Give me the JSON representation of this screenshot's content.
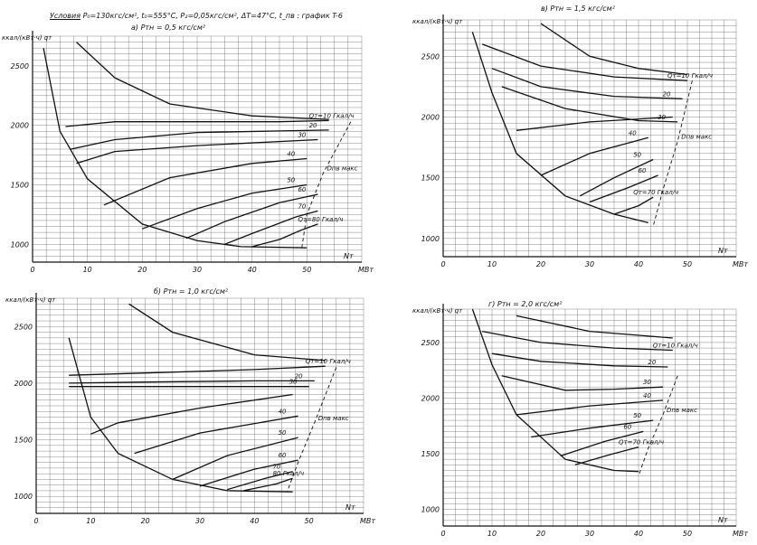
{
  "header": {
    "conditions": "Условия",
    "params": "P₀=130кгс/см², t₀=555°C, P₂=0,05кгс/см², ΔT=47°C, t_пв : график T-6"
  },
  "panels": [
    {
      "id": "a",
      "title": "а) Pтн = 0,5 кгс/см²"
    },
    {
      "id": "b",
      "title": "б) Pтн = 1,0 кгс/см²"
    },
    {
      "id": "v",
      "title": "в) Pтн = 1,5 кгс/см²"
    },
    {
      "id": "g",
      "title": "г) Pтн = 2,0 кгс/см²"
    }
  ],
  "chart_data": [
    {
      "type": "line",
      "panel": "а) Pтн = 0,5 кгс/см²",
      "ylabel": "ккал/(кВт·ч) qт",
      "xlabel": "Nт",
      "xunit": "МВт",
      "xticks": [
        0,
        10,
        20,
        30,
        40,
        50
      ],
      "yticks": [
        1000,
        1500,
        2000,
        2500
      ],
      "xlim": [
        0,
        60
      ],
      "ylim": [
        850,
        2750
      ],
      "grid": true,
      "series": [
        {
          "name": "Qт=10 Гкал/ч",
          "points": [
            [
              6,
              1990
            ],
            [
              15,
              2030
            ],
            [
              30,
              2030
            ],
            [
              45,
              2030
            ],
            [
              54,
              2040
            ]
          ]
        },
        {
          "name": "20",
          "points": [
            [
              7,
              1800
            ],
            [
              15,
              1880
            ],
            [
              30,
              1940
            ],
            [
              54,
              1960
            ]
          ]
        },
        {
          "name": "30",
          "points": [
            [
              8,
              1680
            ],
            [
              15,
              1780
            ],
            [
              30,
              1830
            ],
            [
              52,
              1880
            ]
          ]
        },
        {
          "name": "40",
          "points": [
            [
              13,
              1330
            ],
            [
              25,
              1560
            ],
            [
              40,
              1680
            ],
            [
              50,
              1720
            ]
          ]
        },
        {
          "name": "50",
          "points": [
            [
              20,
              1130
            ],
            [
              30,
              1300
            ],
            [
              40,
              1430
            ],
            [
              50,
              1500
            ]
          ]
        },
        {
          "name": "60",
          "points": [
            [
              28,
              1050
            ],
            [
              35,
              1190
            ],
            [
              45,
              1350
            ],
            [
              52,
              1420
            ]
          ]
        },
        {
          "name": "70",
          "points": [
            [
              35,
              1000
            ],
            [
              40,
              1090
            ],
            [
              48,
              1230
            ],
            [
              52,
              1280
            ]
          ]
        },
        {
          "name": "Qт=80 Гкал/ч",
          "points": [
            [
              40,
              980
            ],
            [
              45,
              1040
            ],
            [
              49,
              1120
            ],
            [
              52,
              1170
            ]
          ]
        },
        {
          "name": "",
          "points": [
            [
              2,
              2650
            ],
            [
              5,
              1950
            ],
            [
              10,
              1550
            ],
            [
              20,
              1170
            ],
            [
              30,
              1030
            ],
            [
              38,
              980
            ],
            [
              50,
              970
            ]
          ]
        },
        {
          "name": "",
          "points": [
            [
              8,
              2700
            ],
            [
              15,
              2400
            ],
            [
              25,
              2180
            ],
            [
              40,
              2080
            ],
            [
              54,
              2050
            ]
          ]
        },
        {
          "name": "Dпв макс",
          "points": [
            [
              58,
              2030
            ],
            [
              53,
              1600
            ],
            [
              50,
              1250
            ],
            [
              49,
              950
            ]
          ]
        }
      ]
    },
    {
      "type": "line",
      "panel": "б) Pтн = 1,0 кгс/см²",
      "ylabel": "ккал/(кВт·ч) qт",
      "xlabel": "Nт",
      "xunit": "МВт",
      "xticks": [
        0,
        10,
        20,
        30,
        40,
        50
      ],
      "yticks": [
        1000,
        1500,
        2000,
        2500
      ],
      "xlim": [
        0,
        60
      ],
      "ylim": [
        850,
        2750
      ],
      "grid": true,
      "series": [
        {
          "name": "Qт=10 Гкал/ч",
          "points": [
            [
              6,
              2070
            ],
            [
              20,
              2090
            ],
            [
              40,
              2120
            ],
            [
              53,
              2150
            ]
          ]
        },
        {
          "name": "20",
          "points": [
            [
              6,
              2000
            ],
            [
              20,
              2010
            ],
            [
              40,
              2020
            ],
            [
              51,
              2020
            ]
          ]
        },
        {
          "name": "30",
          "points": [
            [
              6,
              1970
            ],
            [
              20,
              1970
            ],
            [
              40,
              1970
            ],
            [
              50,
              1970
            ]
          ]
        },
        {
          "name": "",
          "points": [
            [
              10,
              1550
            ],
            [
              15,
              1650
            ],
            [
              30,
              1780
            ],
            [
              47,
              1900
            ]
          ]
        },
        {
          "name": "40",
          "points": [
            [
              18,
              1380
            ],
            [
              30,
              1560
            ],
            [
              48,
              1710
            ]
          ]
        },
        {
          "name": "50",
          "points": [
            [
              25,
              1150
            ],
            [
              35,
              1360
            ],
            [
              48,
              1520
            ]
          ]
        },
        {
          "name": "60",
          "points": [
            [
              30,
              1090
            ],
            [
              40,
              1240
            ],
            [
              48,
              1320
            ]
          ]
        },
        {
          "name": "70",
          "points": [
            [
              35,
              1060
            ],
            [
              42,
              1160
            ],
            [
              47,
              1220
            ]
          ]
        },
        {
          "name": "80 Гкал/ч",
          "points": [
            [
              38,
              1050
            ],
            [
              44,
              1110
            ],
            [
              47,
              1160
            ]
          ]
        },
        {
          "name": "",
          "points": [
            [
              6,
              2400
            ],
            [
              10,
              1700
            ],
            [
              15,
              1380
            ],
            [
              25,
              1150
            ],
            [
              35,
              1050
            ],
            [
              47,
              1040
            ]
          ]
        },
        {
          "name": "",
          "points": [
            [
              17,
              2700
            ],
            [
              25,
              2450
            ],
            [
              40,
              2250
            ],
            [
              53,
              2200
            ]
          ]
        },
        {
          "name": "Dпв макс",
          "points": [
            [
              55,
              2140
            ],
            [
              51,
              1650
            ],
            [
              48,
              1300
            ],
            [
              46,
              1040
            ]
          ]
        }
      ]
    },
    {
      "type": "line",
      "panel": "в) Pтн = 1,5 кгс/см²",
      "ylabel": "ккал/(кВт·ч) qт",
      "xlabel": "Nт",
      "xunit": "МВт",
      "xticks": [
        0,
        10,
        20,
        30,
        40,
        50
      ],
      "yticks": [
        1000,
        1500,
        2000,
        2500
      ],
      "xlim": [
        0,
        60
      ],
      "ylim": [
        850,
        2800
      ],
      "grid": true,
      "series": [
        {
          "name": "Qт=10 Гкал/ч",
          "points": [
            [
              8,
              2600
            ],
            [
              20,
              2420
            ],
            [
              35,
              2330
            ],
            [
              50,
              2300
            ]
          ]
        },
        {
          "name": "20",
          "points": [
            [
              10,
              2400
            ],
            [
              20,
              2250
            ],
            [
              35,
              2170
            ],
            [
              49,
              2150
            ]
          ]
        },
        {
          "name": "30",
          "points": [
            [
              12,
              2250
            ],
            [
              25,
              2070
            ],
            [
              40,
              1970
            ],
            [
              48,
              1960
            ]
          ]
        },
        {
          "name": "",
          "points": [
            [
              15,
              1890
            ],
            [
              30,
              1960
            ],
            [
              47,
              2000
            ]
          ]
        },
        {
          "name": "40",
          "points": [
            [
              20,
              1520
            ],
            [
              30,
              1700
            ],
            [
              42,
              1830
            ]
          ]
        },
        {
          "name": "50",
          "points": [
            [
              28,
              1350
            ],
            [
              35,
              1500
            ],
            [
              43,
              1650
            ]
          ]
        },
        {
          "name": "60",
          "points": [
            [
              30,
              1300
            ],
            [
              38,
              1420
            ],
            [
              44,
              1520
            ]
          ]
        },
        {
          "name": "Qт=70 Гкал/ч",
          "points": [
            [
              35,
              1200
            ],
            [
              40,
              1270
            ],
            [
              43,
              1340
            ]
          ]
        },
        {
          "name": "",
          "points": [
            [
              6,
              2700
            ],
            [
              10,
              2200
            ],
            [
              15,
              1700
            ],
            [
              25,
              1350
            ],
            [
              35,
              1200
            ],
            [
              42,
              1130
            ]
          ]
        },
        {
          "name": "",
          "points": [
            [
              20,
              2770
            ],
            [
              30,
              2500
            ],
            [
              40,
              2400
            ],
            [
              50,
              2350
            ]
          ]
        },
        {
          "name": "Dпв макс",
          "points": [
            [
              51,
              2300
            ],
            [
              48,
              1800
            ],
            [
              45,
              1400
            ],
            [
              43,
              1100
            ]
          ]
        }
      ]
    },
    {
      "type": "line",
      "panel": "г) Pтн = 2,0 кгс/см²",
      "ylabel": "ккал/(кВт·ч) qт",
      "xlabel": "Nт",
      "xunit": "МВт",
      "xticks": [
        0,
        10,
        20,
        30,
        40,
        50
      ],
      "yticks": [
        1000,
        1500,
        2000,
        2500
      ],
      "xlim": [
        0,
        60
      ],
      "ylim": [
        850,
        2800
      ],
      "grid": true,
      "series": [
        {
          "name": "Qт=10 Гкал/ч",
          "points": [
            [
              8,
              2600
            ],
            [
              20,
              2500
            ],
            [
              35,
              2450
            ],
            [
              47,
              2430
            ]
          ]
        },
        {
          "name": "20",
          "points": [
            [
              10,
              2400
            ],
            [
              20,
              2330
            ],
            [
              35,
              2290
            ],
            [
              46,
              2280
            ]
          ]
        },
        {
          "name": "30",
          "points": [
            [
              12,
              2200
            ],
            [
              25,
              2070
            ],
            [
              35,
              2080
            ],
            [
              45,
              2100
            ]
          ]
        },
        {
          "name": "40",
          "points": [
            [
              15,
              1850
            ],
            [
              30,
              1930
            ],
            [
              45,
              1980
            ]
          ]
        },
        {
          "name": "50",
          "points": [
            [
              18,
              1650
            ],
            [
              30,
              1730
            ],
            [
              43,
              1800
            ]
          ]
        },
        {
          "name": "60",
          "points": [
            [
              24,
              1480
            ],
            [
              33,
              1610
            ],
            [
              41,
              1700
            ]
          ]
        },
        {
          "name": "Qт=70 Гкал/ч",
          "points": [
            [
              27,
              1400
            ],
            [
              34,
              1490
            ],
            [
              40,
              1560
            ]
          ]
        },
        {
          "name": "",
          "points": [
            [
              6,
              2800
            ],
            [
              10,
              2300
            ],
            [
              15,
              1850
            ],
            [
              25,
              1450
            ],
            [
              35,
              1350
            ],
            [
              40,
              1340
            ]
          ]
        },
        {
          "name": "",
          "points": [
            [
              15,
              2740
            ],
            [
              30,
              2600
            ],
            [
              47,
              2540
            ]
          ]
        },
        {
          "name": "Dпв макс",
          "points": [
            [
              48,
              2200
            ],
            [
              45,
              1850
            ],
            [
              42,
              1550
            ],
            [
              40,
              1300
            ]
          ]
        }
      ]
    }
  ]
}
